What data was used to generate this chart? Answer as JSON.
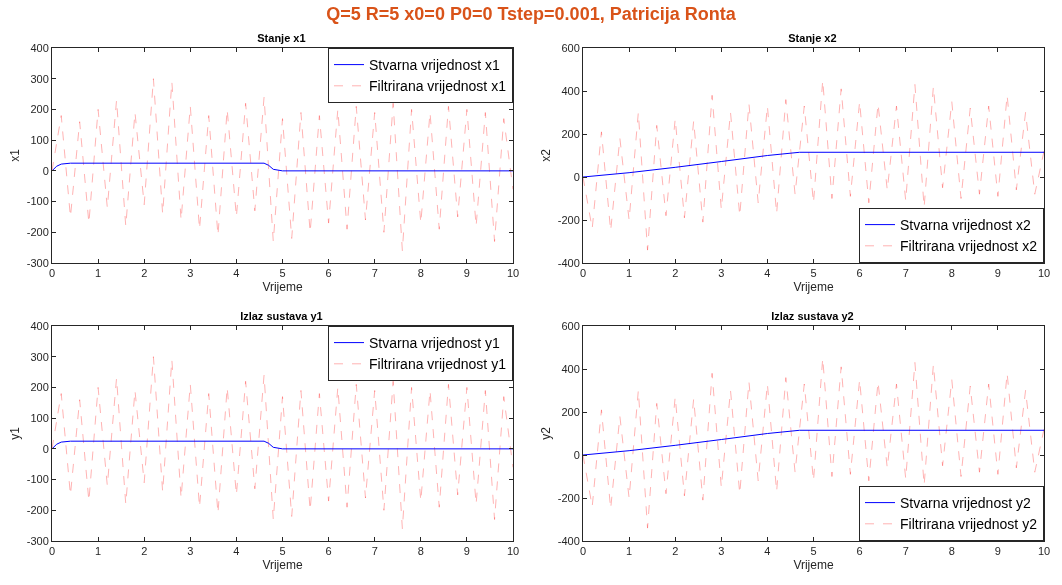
{
  "chart_data": [
    {
      "type": "line",
      "title": "Stanje x1",
      "xlabel": "Vrijeme",
      "ylabel": "x1",
      "annotations": [
        "Q=5 R=5 x0=0 P0=0 Tstep=0.001, Patricija Ronta"
      ],
      "xlim": [
        0,
        10
      ],
      "ylim": [
        -300,
        400
      ],
      "xticks": [
        0,
        1,
        2,
        3,
        4,
        5,
        6,
        7,
        8,
        9,
        10
      ],
      "yticks": [
        -300,
        -200,
        -100,
        0,
        100,
        200,
        300,
        400
      ],
      "legend": "top right",
      "grid": false,
      "series": [
        {
          "name": "Stvarna vrijednost x1",
          "color": "#0000ff",
          "line_style": "solid",
          "x": [
            0,
            0.1,
            0.2,
            0.4,
            4.6,
            4.7,
            4.8,
            5,
            10
          ],
          "values": [
            0,
            15,
            22,
            25,
            25,
            18,
            5,
            0,
            0
          ]
        },
        {
          "name": "Filtrirana vrijednost x1",
          "color": "#ff0000",
          "line_style": "dashed",
          "x": [
            0,
            0.2,
            0.4,
            0.6,
            0.8,
            1,
            1.2,
            1.4,
            1.6,
            1.8,
            2,
            2.2,
            2.4,
            2.6,
            2.8,
            3,
            3.2,
            3.4,
            3.6,
            3.8,
            4,
            4.2,
            4.4,
            4.6,
            4.8,
            5,
            5.2,
            5.4,
            5.6,
            5.8,
            6,
            6.2,
            6.4,
            6.6,
            6.8,
            7,
            7.2,
            7.4,
            7.6,
            7.8,
            8,
            8.2,
            8.4,
            8.6,
            8.8,
            9,
            9.2,
            9.4,
            9.6,
            9.8,
            10
          ],
          "values": [
            0,
            180,
            -150,
            160,
            -170,
            200,
            -120,
            230,
            -180,
            190,
            -110,
            300,
            -140,
            290,
            -160,
            210,
            -190,
            180,
            -210,
            200,
            -150,
            220,
            -130,
            240,
            -230,
            170,
            -220,
            190,
            -200,
            180,
            -170,
            200,
            -190,
            210,
            -160,
            190,
            -200,
            220,
            -260,
            200,
            -170,
            190,
            -190,
            210,
            -150,
            200,
            -180,
            190,
            -230,
            170,
            -60
          ]
        }
      ]
    },
    {
      "type": "line",
      "title": "Stanje x2",
      "xlabel": "Vrijeme",
      "ylabel": "x2",
      "xlim": [
        0,
        10
      ],
      "ylim": [
        -400,
        600
      ],
      "xticks": [
        0,
        1,
        2,
        3,
        4,
        5,
        6,
        7,
        8,
        9,
        10
      ],
      "yticks": [
        -400,
        -200,
        0,
        200,
        400,
        600
      ],
      "legend": "bottom right",
      "grid": false,
      "series": [
        {
          "name": "Stvarna vrijednost x2",
          "color": "#0000ff",
          "line_style": "solid",
          "x": [
            0,
            1,
            2,
            3,
            4,
            4.7,
            10
          ],
          "values": [
            0,
            20,
            45,
            72,
            100,
            115,
            115
          ]
        },
        {
          "name": "Filtrirana vrijednost x2",
          "color": "#ff0000",
          "line_style": "dashed",
          "x": [
            0,
            0.2,
            0.4,
            0.6,
            0.8,
            1,
            1.2,
            1.4,
            1.6,
            1.8,
            2,
            2.2,
            2.4,
            2.6,
            2.8,
            3,
            3.2,
            3.4,
            3.6,
            3.8,
            4,
            4.2,
            4.4,
            4.6,
            4.8,
            5,
            5.2,
            5.4,
            5.6,
            5.8,
            6,
            6.2,
            6.4,
            6.6,
            6.8,
            7,
            7.2,
            7.4,
            7.6,
            7.8,
            8,
            8.2,
            8.4,
            8.6,
            8.8,
            9,
            9.2,
            9.4,
            9.6,
            9.8,
            10
          ],
          "values": [
            0,
            -240,
            210,
            -250,
            180,
            -200,
            300,
            -340,
            240,
            -180,
            270,
            -190,
            260,
            -210,
            380,
            -150,
            300,
            -180,
            340,
            -120,
            330,
            -170,
            360,
            -80,
            330,
            -120,
            450,
            -100,
            410,
            -90,
            350,
            -120,
            340,
            -60,
            330,
            -110,
            430,
            -140,
            420,
            -50,
            350,
            -100,
            320,
            -80,
            330,
            -90,
            380,
            -60,
            300,
            -80,
            120
          ]
        }
      ]
    },
    {
      "type": "line",
      "title": "Izlaz sustava y1",
      "xlabel": "Vrijeme",
      "ylabel": "y1",
      "xlim": [
        0,
        10
      ],
      "ylim": [
        -300,
        400
      ],
      "xticks": [
        0,
        1,
        2,
        3,
        4,
        5,
        6,
        7,
        8,
        9,
        10
      ],
      "yticks": [
        -300,
        -200,
        -100,
        0,
        100,
        200,
        300,
        400
      ],
      "legend": "top right",
      "grid": false,
      "series": [
        {
          "name": "Stvarna vrijednost y1",
          "color": "#0000ff",
          "line_style": "solid",
          "x": [
            0,
            0.1,
            0.2,
            0.4,
            4.6,
            4.7,
            4.8,
            5,
            10
          ],
          "values": [
            0,
            15,
            22,
            25,
            25,
            18,
            5,
            0,
            0
          ]
        },
        {
          "name": "Filtrirana vrijednost y1",
          "color": "#ff0000",
          "line_style": "dashed",
          "x": [
            0,
            0.2,
            0.4,
            0.6,
            0.8,
            1,
            1.2,
            1.4,
            1.6,
            1.8,
            2,
            2.2,
            2.4,
            2.6,
            2.8,
            3,
            3.2,
            3.4,
            3.6,
            3.8,
            4,
            4.2,
            4.4,
            4.6,
            4.8,
            5,
            5.2,
            5.4,
            5.6,
            5.8,
            6,
            6.2,
            6.4,
            6.6,
            6.8,
            7,
            7.2,
            7.4,
            7.6,
            7.8,
            8,
            8.2,
            8.4,
            8.6,
            8.8,
            9,
            9.2,
            9.4,
            9.6,
            9.8,
            10
          ],
          "values": [
            0,
            180,
            -150,
            160,
            -170,
            200,
            -120,
            230,
            -180,
            190,
            -110,
            300,
            -140,
            290,
            -160,
            210,
            -190,
            180,
            -210,
            200,
            -150,
            220,
            -130,
            240,
            -230,
            170,
            -220,
            190,
            -200,
            180,
            -170,
            200,
            -190,
            210,
            -160,
            190,
            -200,
            220,
            -260,
            200,
            -170,
            190,
            -190,
            210,
            -150,
            200,
            -180,
            190,
            -230,
            170,
            -60
          ]
        }
      ]
    },
    {
      "type": "line",
      "title": "Izlaz sustava y2",
      "xlabel": "Vrijeme",
      "ylabel": "y2",
      "xlim": [
        0,
        10
      ],
      "ylim": [
        -400,
        600
      ],
      "xticks": [
        0,
        1,
        2,
        3,
        4,
        5,
        6,
        7,
        8,
        9,
        10
      ],
      "yticks": [
        -400,
        -200,
        0,
        200,
        400,
        600
      ],
      "legend": "bottom right",
      "grid": false,
      "series": [
        {
          "name": "Stvarna vrijednost y2",
          "color": "#0000ff",
          "line_style": "solid",
          "x": [
            0,
            1,
            2,
            3,
            4,
            4.7,
            10
          ],
          "values": [
            0,
            20,
            45,
            72,
            100,
            115,
            115
          ]
        },
        {
          "name": "Filtrirana vrijednost y2",
          "color": "#ff0000",
          "line_style": "dashed",
          "x": [
            0,
            0.2,
            0.4,
            0.6,
            0.8,
            1,
            1.2,
            1.4,
            1.6,
            1.8,
            2,
            2.2,
            2.4,
            2.6,
            2.8,
            3,
            3.2,
            3.4,
            3.6,
            3.8,
            4,
            4.2,
            4.4,
            4.6,
            4.8,
            5,
            5.2,
            5.4,
            5.6,
            5.8,
            6,
            6.2,
            6.4,
            6.6,
            6.8,
            7,
            7.2,
            7.4,
            7.6,
            7.8,
            8,
            8.2,
            8.4,
            8.6,
            8.8,
            9,
            9.2,
            9.4,
            9.6,
            9.8,
            10
          ],
          "values": [
            0,
            -240,
            210,
            -250,
            180,
            -200,
            300,
            -340,
            240,
            -180,
            270,
            -190,
            260,
            -210,
            380,
            -150,
            300,
            -180,
            340,
            -120,
            330,
            -170,
            360,
            -80,
            330,
            -120,
            450,
            -100,
            410,
            -90,
            350,
            -120,
            340,
            -60,
            330,
            -110,
            430,
            -140,
            420,
            -50,
            350,
            -100,
            320,
            -80,
            330,
            -90,
            380,
            -60,
            300,
            -80,
            120
          ]
        }
      ]
    }
  ]
}
